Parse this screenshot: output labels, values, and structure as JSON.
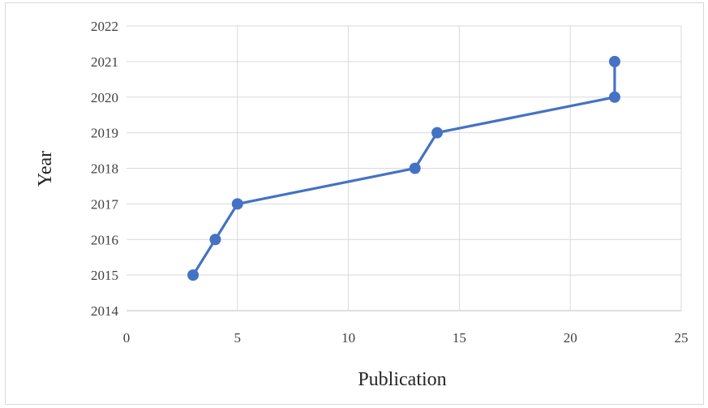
{
  "chart_data": {
    "type": "line",
    "title": "",
    "xlabel": "Publication",
    "ylabel": "Year",
    "xlim": [
      0,
      25
    ],
    "ylim": [
      2014,
      2022
    ],
    "x_ticks": [
      0,
      5,
      10,
      15,
      20,
      25
    ],
    "y_ticks": [
      2014,
      2015,
      2016,
      2017,
      2018,
      2019,
      2020,
      2021,
      2022
    ],
    "grid": true,
    "legend": "none",
    "series": [
      {
        "color": "#4472c4",
        "x": [
          3,
          4,
          5,
          13,
          14,
          22,
          22
        ],
        "y": [
          2015,
          2016,
          2017,
          2018,
          2019,
          2020,
          2021
        ]
      }
    ]
  },
  "colors": {
    "series": "#4472c4",
    "grid": "#d9d9d9",
    "axis": "#bfbfbf"
  }
}
